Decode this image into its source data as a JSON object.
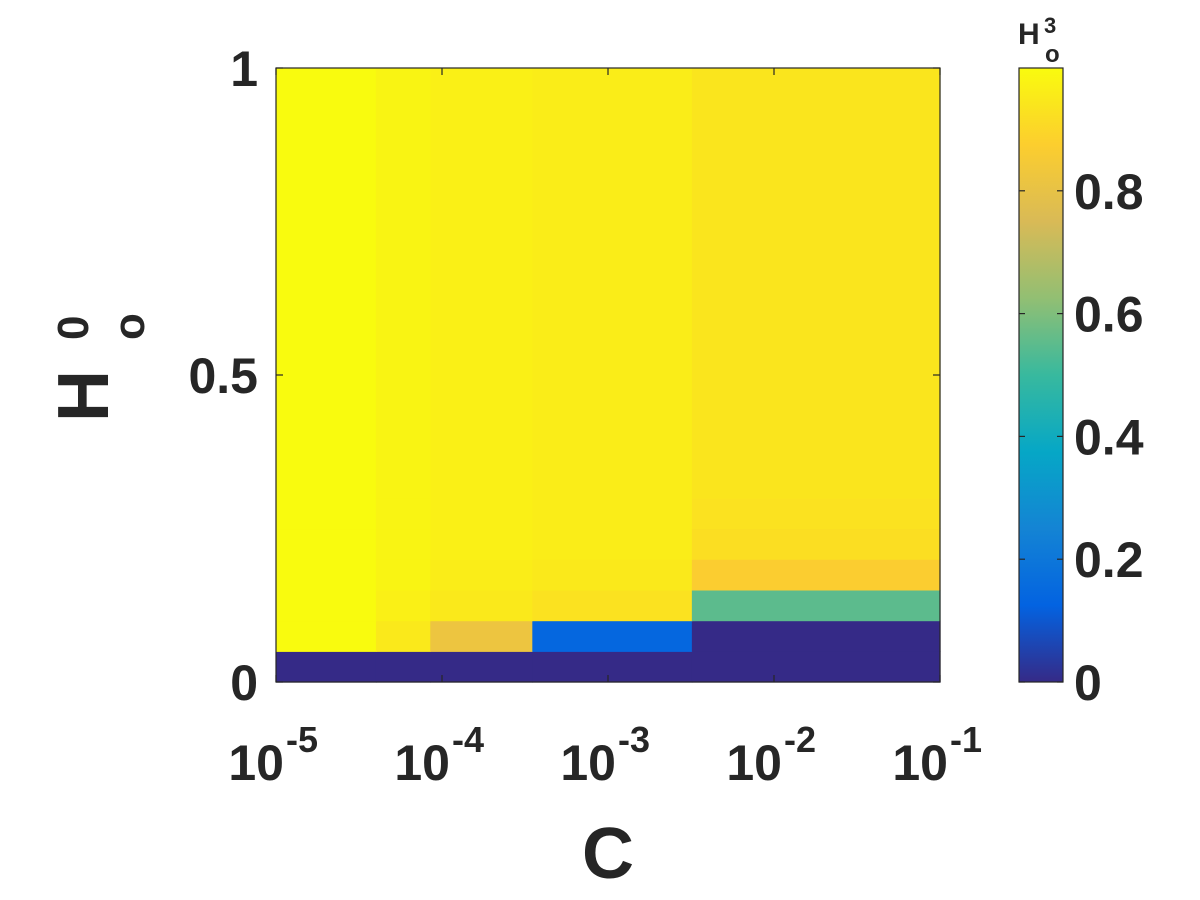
{
  "chart_data": {
    "type": "heatmap",
    "xlabel": "C",
    "ylabel": {
      "base": "H",
      "sub": "o",
      "sup": "0"
    },
    "x_scale": "log",
    "xlim": [
      1e-05,
      0.1
    ],
    "ylim": [
      0,
      1
    ],
    "x_ticks": [
      {
        "value": 1e-05,
        "base": "10",
        "exp": "-5"
      },
      {
        "value": 0.0001,
        "base": "10",
        "exp": "-4"
      },
      {
        "value": 0.001,
        "base": "10",
        "exp": "-3"
      },
      {
        "value": 0.01,
        "base": "10",
        "exp": "-2"
      },
      {
        "value": 0.1,
        "base": "10",
        "exp": "-1"
      }
    ],
    "y_ticks": [
      {
        "value": 0,
        "label": "0"
      },
      {
        "value": 0.5,
        "label": "0.5"
      },
      {
        "value": 1,
        "label": "1"
      }
    ],
    "x_edges": [
      1e-05,
      4e-05,
      8.5e-05,
      0.00035,
      0.0032,
      0.1
    ],
    "y_edges": [
      0,
      0.05,
      0.1,
      0.15,
      0.2,
      0.25,
      0.3,
      1.0
    ],
    "values": [
      [
        0.0,
        0.0,
        0.0,
        0.0,
        0.0
      ],
      [
        1.0,
        0.95,
        0.82,
        0.14,
        0.0
      ],
      [
        1.0,
        0.97,
        0.95,
        0.93,
        0.55
      ],
      [
        1.0,
        0.98,
        0.96,
        0.95,
        0.87
      ],
      [
        1.0,
        0.98,
        0.97,
        0.96,
        0.92
      ],
      [
        1.0,
        0.98,
        0.97,
        0.96,
        0.93
      ],
      [
        1.0,
        0.98,
        0.97,
        0.96,
        0.94
      ]
    ],
    "colorbar": {
      "colormap": "parula",
      "clim": [
        0,
        1
      ],
      "title": {
        "base": "H",
        "sub": "o",
        "sup": "3"
      },
      "ticks": [
        {
          "value": 0,
          "label": "0"
        },
        {
          "value": 0.2,
          "label": "0.2"
        },
        {
          "value": 0.4,
          "label": "0.4"
        },
        {
          "value": 0.6,
          "label": "0.6"
        },
        {
          "value": 0.8,
          "label": "0.8"
        }
      ]
    }
  }
}
